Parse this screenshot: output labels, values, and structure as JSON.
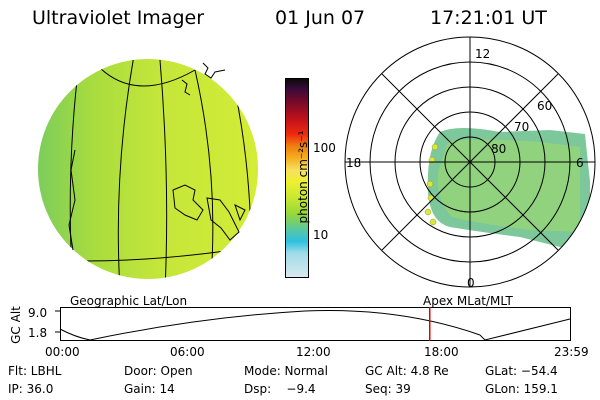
{
  "header": {
    "instrument": "Ultraviolet Imager",
    "date": "01 Jun 07",
    "time": "17:21:01 UT"
  },
  "geo_panel": {
    "caption": "Geographic Lat/Lon"
  },
  "colorbar": {
    "unit_label": "photon cm⁻²s⁻¹",
    "ticks": [
      "100",
      "10"
    ],
    "colors": [
      "#0a0a0a",
      "#3a0a3a",
      "#7a0a2a",
      "#c0101a",
      "#ee2a10",
      "#f08010",
      "#f5b020",
      "#f8e060",
      "#eef030",
      "#c8e832",
      "#98d838",
      "#58c8a0",
      "#30c0e0",
      "#a0dce8",
      "#d8e8ee"
    ]
  },
  "polar_panel": {
    "caption": "Apex MLat/MLT",
    "hour_labels": {
      "top": "12",
      "left": "18",
      "right": "6",
      "bottom": "0"
    },
    "lat_labels": [
      "60",
      "70",
      "80"
    ]
  },
  "alt_plot": {
    "ylabel": "GC Alt",
    "yticks": [
      "9.0",
      "1.8"
    ],
    "xticks": [
      "00:00",
      "06:00",
      "12:00",
      "18:00",
      "23:59"
    ],
    "current_time_fraction": 0.725,
    "marker_color": "#dd0000"
  },
  "info": {
    "row1": {
      "flt": "Flt: LBHL",
      "door": "Door: Open",
      "mode": "Mode: Normal",
      "gcalt": "GC Alt: 4.8 Re",
      "glat": "GLat: −54.4"
    },
    "row2": {
      "ip": "IP: 36.0",
      "gain": "Gain: 14",
      "dsp": "Dsp:    −9.4",
      "seq": "Seq: 39",
      "glon": "GLon: 159.1"
    }
  }
}
